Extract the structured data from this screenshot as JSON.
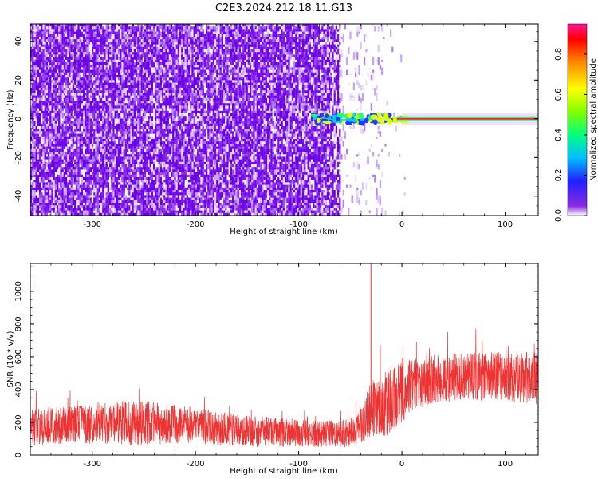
{
  "title": "C2E3.2024.212.18.11.G13",
  "colors": {
    "snr_line": "#ee3333",
    "spectrogram_noise": "#7a10ee",
    "ridge_core": "#ff2020",
    "ridge_glow": "#00ee88"
  },
  "chart_data": [
    {
      "type": "heatmap",
      "xlabel": "Height of straight line (km)",
      "ylabel": "Frequency (Hz)",
      "xlim": [
        -360,
        132
      ],
      "ylim": [
        -50,
        49
      ],
      "xticks": [
        -300,
        -200,
        -100,
        0,
        100
      ],
      "yticks": [
        -40,
        -20,
        0,
        20,
        40
      ],
      "xtick_labels": [
        "-300",
        "-200",
        "-100",
        "0",
        "100"
      ],
      "ytick_labels": [
        "-40",
        "-20",
        "0",
        "20",
        "40"
      ],
      "colorbar": {
        "label": "Normalized spectral amplitude",
        "range": [
          0,
          0.95
        ],
        "ticks": [
          0.0,
          0.2,
          0.4,
          0.6,
          0.8
        ],
        "tick_labels": [
          "0.0",
          "0.2",
          "0.4",
          "0.6",
          "0.8"
        ]
      },
      "description_points": {
        "noise_region_km": [
          -360,
          -60
        ],
        "sparse_region_km": [
          -60,
          -20
        ],
        "ridge_start_km": -85,
        "ridge_frequency_hz": 0,
        "ridge_amplitude": 0.85
      }
    },
    {
      "type": "line",
      "xlabel": "Height of straight line (km)",
      "ylabel": "SNR (10 * v/v)",
      "xlim": [
        -360,
        132
      ],
      "ylim": [
        0,
        1170
      ],
      "xticks": [
        -300,
        -200,
        -100,
        0,
        100
      ],
      "yticks": [
        0,
        200,
        400,
        600,
        800,
        1000
      ],
      "xtick_labels": [
        "-300",
        "-200",
        "-100",
        "0",
        "100"
      ],
      "ytick_labels": [
        "0",
        "200",
        "400",
        "600",
        "800",
        "1000"
      ],
      "series": [
        {
          "envelope_x": [
            -360,
            -300,
            -260,
            -200,
            -160,
            -100,
            -60,
            -45,
            -30,
            -10,
            10,
            40,
            80,
            132
          ],
          "mean_y": [
            170,
            190,
            200,
            185,
            150,
            135,
            130,
            140,
            280,
            330,
            430,
            470,
            480,
            470
          ],
          "spread_y": [
            110,
            120,
            140,
            110,
            100,
            85,
            85,
            95,
            170,
            210,
            160,
            150,
            150,
            160
          ],
          "spike_x": -30,
          "spike_y": 1170
        }
      ]
    }
  ]
}
